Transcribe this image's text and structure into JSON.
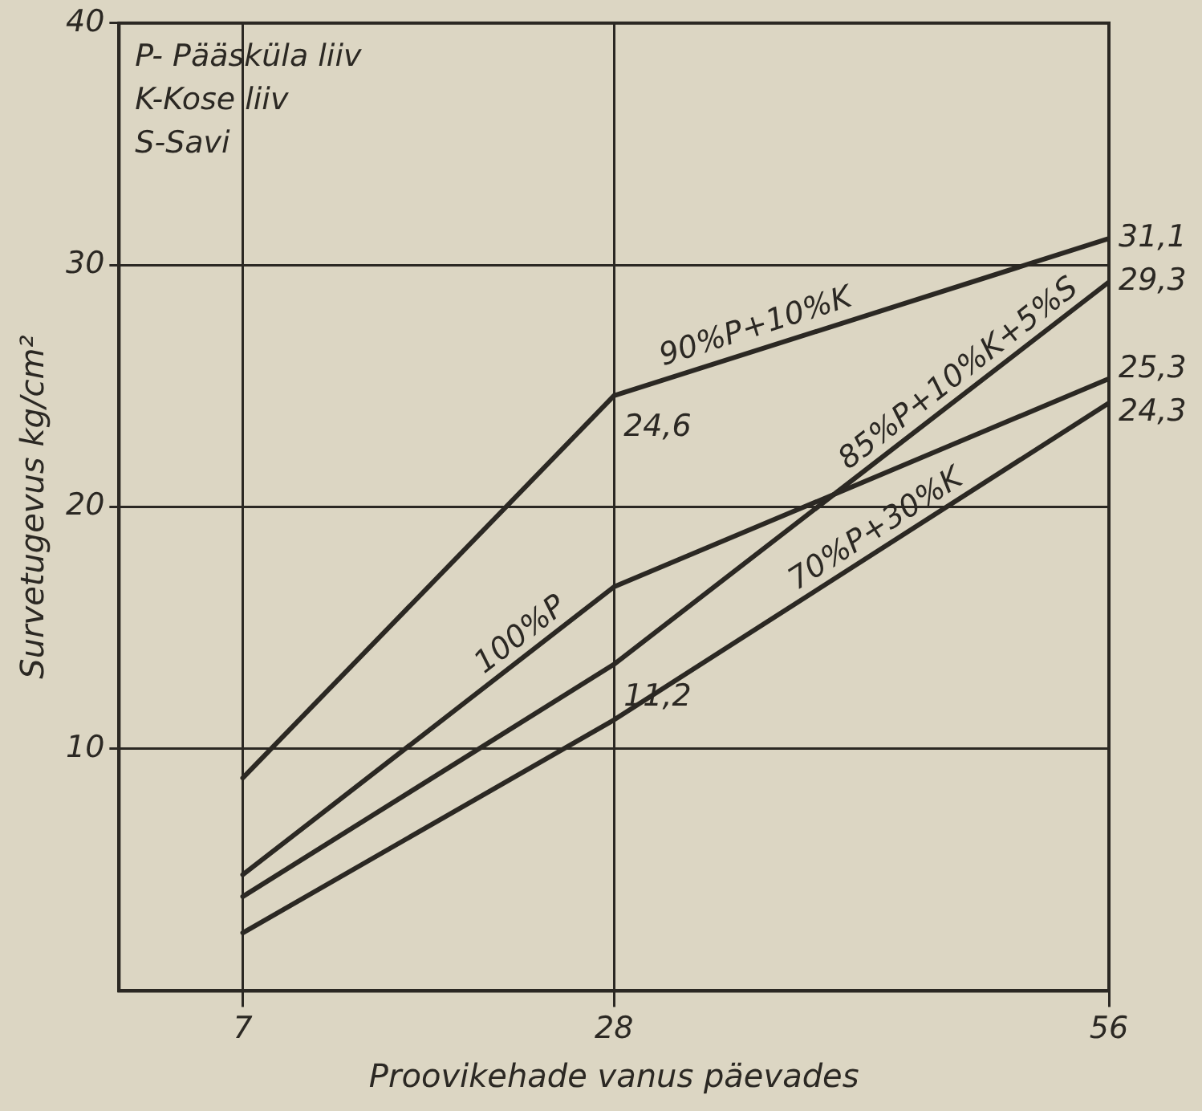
{
  "chart_data": {
    "type": "line",
    "xlabel": "Proovikehade vanus päevades",
    "ylabel": "Survetugevus kg/cm²",
    "x": [
      7,
      28,
      56
    ],
    "xlim": [
      0,
      56
    ],
    "xticks": [
      7,
      28,
      56
    ],
    "ylim": [
      0,
      40
    ],
    "yticks": [
      10,
      20,
      30,
      40
    ],
    "grid": true,
    "marker": "none",
    "line_style": "solid",
    "legend": false,
    "annotations": [
      "P- Pääsküla liiv",
      "K-Kose liiv",
      "S-Savi"
    ],
    "series": [
      {
        "name": "90%P+10%K",
        "color": "#2b2823",
        "values": [
          8.8,
          24.6,
          31.1
        ],
        "value_labels": [
          null,
          "24,6",
          "31,1"
        ]
      },
      {
        "name": "100%P",
        "color": "#2b2823",
        "values": [
          4.8,
          16.7,
          25.3
        ],
        "value_labels": [
          null,
          null,
          "25,3"
        ]
      },
      {
        "name": "85%P+10%K+5%S",
        "color": "#2b2823",
        "values": [
          3.9,
          13.5,
          29.3
        ],
        "value_labels": [
          null,
          null,
          "29,3"
        ]
      },
      {
        "name": "70%P+30%K",
        "color": "#2b2823",
        "values": [
          2.4,
          11.2,
          24.3
        ],
        "value_labels": [
          null,
          "11,2",
          "24,3"
        ]
      }
    ]
  }
}
